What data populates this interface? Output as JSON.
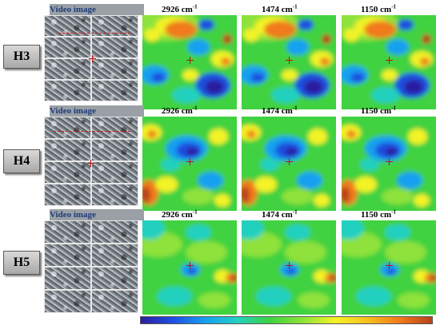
{
  "rows": [
    {
      "label": "H3",
      "video_header": "Video image",
      "maps": [
        {
          "wavenumber": "2926",
          "unit": "cm",
          "exp": "-1",
          "map_kind": "high-contrast"
        },
        {
          "wavenumber": "1474",
          "unit": "cm",
          "exp": "-1",
          "map_kind": "high-contrast"
        },
        {
          "wavenumber": "1150",
          "unit": "cm",
          "exp": "-1",
          "map_kind": "high-contrast"
        }
      ]
    },
    {
      "label": "H4",
      "video_header": "Video image",
      "maps": [
        {
          "wavenumber": "2926",
          "unit": "cm",
          "exp": "-1",
          "map_kind": "medium-contrast"
        },
        {
          "wavenumber": "1474",
          "unit": "cm",
          "exp": "-1",
          "map_kind": "medium-contrast"
        },
        {
          "wavenumber": "1150",
          "unit": "cm",
          "exp": "-1",
          "map_kind": "medium-contrast"
        }
      ]
    },
    {
      "label": "H5",
      "video_header": "Video image",
      "maps": [
        {
          "wavenumber": "2926",
          "unit": "cm",
          "exp": "-1",
          "map_kind": "low-contrast"
        },
        {
          "wavenumber": "1474",
          "unit": "cm",
          "exp": "-1",
          "map_kind": "low-contrast"
        },
        {
          "wavenumber": "1150",
          "unit": "cm",
          "exp": "-1",
          "map_kind": "low-contrast"
        }
      ]
    }
  ],
  "colors": {
    "label_text": "#000000",
    "video_header": "#1f3b7a",
    "marker": "#c01010",
    "colorbar": [
      "#2a1fa0",
      "#1f4fe0",
      "#19a0f0",
      "#22d0c0",
      "#3fd23f",
      "#8ee23a",
      "#f3f325",
      "#f8c020",
      "#f07a1c",
      "#b8431c"
    ]
  }
}
